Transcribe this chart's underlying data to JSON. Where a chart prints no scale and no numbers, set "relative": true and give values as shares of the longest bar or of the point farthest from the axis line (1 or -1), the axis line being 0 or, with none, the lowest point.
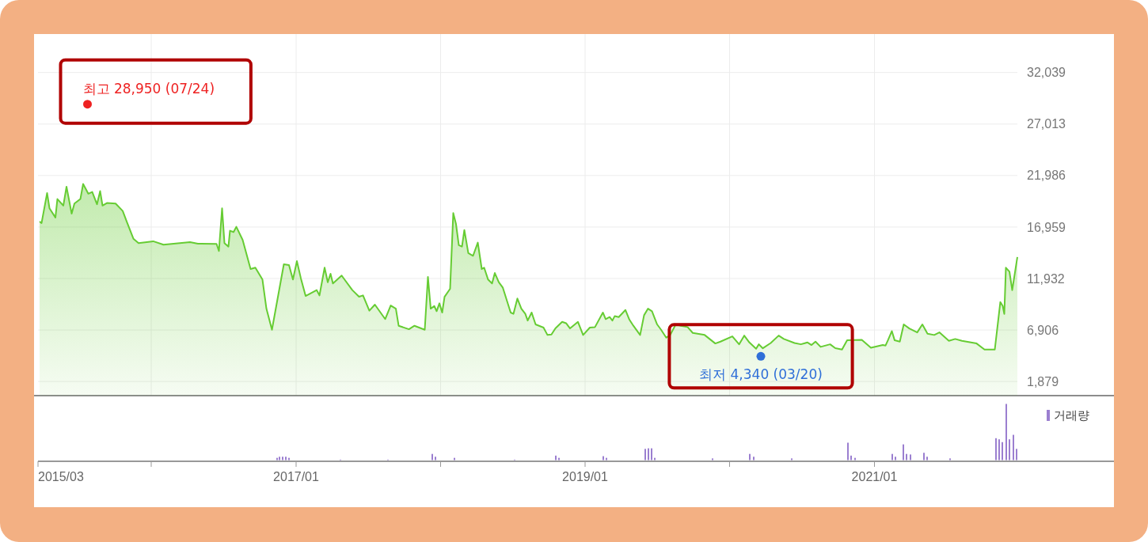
{
  "chart_data": [
    {
      "type": "area",
      "xlim": [
        "2015-03-21",
        "2022-08-29"
      ],
      "ylim": [
        500,
        35800
      ],
      "yticks": [
        {
          "value": 1879,
          "label": "1,879"
        },
        {
          "value": 6906,
          "label": "6,906"
        },
        {
          "value": 11932,
          "label": "11,932"
        },
        {
          "value": 16959,
          "label": "16,959"
        },
        {
          "value": 21986,
          "label": "21,986"
        },
        {
          "value": 27013,
          "label": "27,013"
        },
        {
          "value": 32039,
          "label": "32,039"
        }
      ],
      "xticks": [
        {
          "value": "2016-01-01",
          "label": null
        },
        {
          "value": "2017-01-01",
          "label": null
        },
        {
          "value": "2018-01-01",
          "label": null
        },
        {
          "value": "2019-01-01",
          "label": null
        },
        {
          "value": "2020-01-01",
          "label": null
        },
        {
          "value": "2021-01-01",
          "label": null
        }
      ],
      "grid": true,
      "tick_labels": "y",
      "series": [
        {
          "color": "#66cc33",
          "x": [
            "2015-03-25",
            "2015-03-30",
            "2015-04-13",
            "2015-04-19",
            "2015-05-04",
            "2015-05-09",
            "2015-05-24",
            "2015-06-01",
            "2015-06-14",
            "2015-06-21",
            "2015-07-06",
            "2015-07-13",
            "2015-07-26",
            "2015-08-05",
            "2015-08-17",
            "2015-08-25",
            "2015-08-31",
            "2015-09-11",
            "2015-10-03",
            "2015-10-21",
            "2015-10-31",
            "2015-11-17",
            "2015-11-30",
            "2016-01-06",
            "2016-02-01",
            "2016-04-08",
            "2016-04-28",
            "2016-06-14",
            "2016-06-20",
            "2016-06-28",
            "2016-07-04",
            "2016-07-14",
            "2016-07-18",
            "2016-07-27",
            "2016-08-03",
            "2016-08-19",
            "2016-09-08",
            "2016-09-20",
            "2016-10-08",
            "2016-10-18",
            "2016-11-01",
            "2016-12-01",
            "2016-12-14",
            "2016-12-24",
            "2017-01-03",
            "2017-01-13",
            "2017-01-25",
            "2017-02-22",
            "2017-03-01",
            "2017-03-14",
            "2017-03-22",
            "2017-03-29",
            "2017-04-04",
            "2017-04-26",
            "2017-05-23",
            "2017-06-09",
            "2017-06-19",
            "2017-07-05",
            "2017-07-19",
            "2017-08-14",
            "2017-08-28",
            "2017-09-10",
            "2017-09-17",
            "2017-10-13",
            "2017-10-27",
            "2017-11-22",
            "2017-11-30",
            "2017-12-07",
            "2017-12-16",
            "2017-12-22",
            "2017-12-29",
            "2018-01-05",
            "2018-01-11",
            "2018-01-25",
            "2018-02-02",
            "2018-02-09",
            "2018-02-16",
            "2018-02-24",
            "2018-03-02",
            "2018-03-12",
            "2018-03-24",
            "2018-04-05",
            "2018-04-15",
            "2018-04-21",
            "2018-05-01",
            "2018-05-11",
            "2018-05-18",
            "2018-05-28",
            "2018-06-07",
            "2018-06-27",
            "2018-07-04",
            "2018-07-14",
            "2018-07-24",
            "2018-08-03",
            "2018-08-09",
            "2018-08-19",
            "2018-08-29",
            "2018-09-18",
            "2018-09-28",
            "2018-10-08",
            "2018-10-18",
            "2018-11-04",
            "2018-11-14",
            "2018-11-24",
            "2018-12-14",
            "2018-12-27",
            "2019-01-13",
            "2019-01-26",
            "2019-02-15",
            "2019-02-22",
            "2019-03-04",
            "2019-03-11",
            "2019-03-17",
            "2019-03-27",
            "2019-04-13",
            "2019-04-23",
            "2019-05-03",
            "2019-05-20",
            "2019-05-30",
            "2019-06-09",
            "2019-06-19",
            "2019-07-02",
            "2019-07-12",
            "2019-07-25",
            "2019-08-04",
            "2019-08-18",
            "2019-08-31",
            "2019-09-17",
            "2019-09-30",
            "2019-10-30",
            "2019-11-26",
            "2019-12-09",
            "2020-01-08",
            "2020-01-25",
            "2020-02-07",
            "2020-02-20",
            "2020-03-08",
            "2020-03-15",
            "2020-03-25",
            "2020-04-14",
            "2020-05-04",
            "2020-05-17",
            "2020-06-13",
            "2020-06-29",
            "2020-07-16",
            "2020-07-26",
            "2020-08-05",
            "2020-08-18",
            "2020-09-11",
            "2020-09-24",
            "2020-10-11",
            "2020-10-24",
            "2020-11-30",
            "2020-12-23",
            "2021-01-22",
            "2021-01-29",
            "2021-02-04",
            "2021-02-14",
            "2021-02-21",
            "2021-03-06",
            "2021-03-16",
            "2021-03-30",
            "2021-04-19",
            "2021-05-02",
            "2021-05-15",
            "2021-06-01",
            "2021-06-14",
            "2021-07-08",
            "2021-07-24",
            "2021-08-10",
            "2021-09-16",
            "2021-10-06",
            "2021-11-01",
            "2021-11-15",
            "2021-11-21",
            "2021-11-25",
            "2021-11-29",
            "2021-12-08",
            "2021-12-15",
            "2021-12-28"
          ],
          "values": [
            17500,
            17350,
            20280,
            18790,
            17890,
            19690,
            19050,
            20900,
            18270,
            19250,
            19690,
            21160,
            20210,
            20380,
            19180,
            20460,
            19050,
            19300,
            19250,
            18530,
            17500,
            15820,
            15390,
            15570,
            15230,
            15490,
            15330,
            15310,
            14620,
            18790,
            15390,
            15050,
            16600,
            16470,
            16980,
            15700,
            12860,
            12990,
            11830,
            8990,
            6930,
            13320,
            13250,
            11830,
            13630,
            11960,
            10230,
            10800,
            10280,
            12990,
            11570,
            12400,
            11450,
            12220,
            10800,
            10150,
            10280,
            8790,
            9380,
            7970,
            9300,
            8990,
            7320,
            6980,
            7320,
            6930,
            12090,
            8990,
            9250,
            8740,
            9510,
            8610,
            10150,
            10930,
            18330,
            17240,
            15180,
            15050,
            16670,
            14410,
            14150,
            15440,
            12860,
            12990,
            11830,
            11450,
            12470,
            11570,
            11060,
            8610,
            8480,
            9980,
            8990,
            8480,
            7830,
            8610,
            7450,
            7140,
            6420,
            6470,
            7060,
            7700,
            7570,
            7060,
            7700,
            6420,
            7140,
            7190,
            8610,
            7970,
            8170,
            7830,
            8270,
            8170,
            8860,
            7910,
            7320,
            6420,
            8350,
            8990,
            8740,
            7450,
            6930,
            6160,
            6420,
            7450,
            7320,
            7190,
            6620,
            6420,
            5590,
            5770,
            6290,
            5510,
            6360,
            5690,
            5070,
            5510,
            5120,
            5640,
            6360,
            6030,
            5640,
            5510,
            5690,
            5440,
            5770,
            5260,
            5510,
            5130,
            5000,
            5900,
            5950,
            5180,
            5440,
            5390,
            5900,
            6800,
            5900,
            5770,
            7450,
            7060,
            6670,
            7450,
            6540,
            6420,
            6670,
            5850,
            6030,
            5850,
            5590,
            5000,
            5000,
            9640,
            9250,
            8480,
            12990,
            12600,
            10800,
            14020
          ]
        }
      ],
      "annotations": [
        {
          "text": "최고 28,950 (07/24)",
          "x": "2015-07-24",
          "y": 28950
        },
        {
          "text": "최저 4,340 (03/20)",
          "x": "2020-03-20",
          "y": 4340
        }
      ]
    },
    {
      "type": "bar",
      "relative": true,
      "legend": "top right",
      "tick_labels": "x",
      "xlim": [
        "2015-03-21",
        "2022-08-29"
      ],
      "xticks": [
        {
          "value": "2015-03-21",
          "label": "2015/03"
        },
        {
          "value": "2016-01-01",
          "label": null
        },
        {
          "value": "2017-01-01",
          "label": "2017/01"
        },
        {
          "value": "2018-01-01",
          "label": null
        },
        {
          "value": "2019-01-01",
          "label": "2019/01"
        },
        {
          "value": "2020-01-01",
          "label": null
        },
        {
          "value": "2021-01-01",
          "label": "2021/01"
        }
      ],
      "series": [
        {
          "name": "거래량",
          "color": "#9b7fd0",
          "x": [
            "2016-11-14",
            "2016-11-20",
            "2016-11-28",
            "2016-12-06",
            "2016-12-14",
            "2017-04-23",
            "2017-08-21",
            "2017-12-11",
            "2017-12-19",
            "2018-02-05",
            "2018-07-07",
            "2018-10-19",
            "2018-10-27",
            "2019-02-16",
            "2019-02-24",
            "2019-06-02",
            "2019-06-10",
            "2019-06-18",
            "2019-06-26",
            "2019-11-19",
            "2020-02-21",
            "2020-03-02",
            "2020-06-06",
            "2020-10-26",
            "2020-11-03",
            "2020-11-13",
            "2021-02-15",
            "2021-02-23",
            "2021-03-15",
            "2021-03-23",
            "2021-04-02",
            "2021-05-06",
            "2021-05-14",
            "2021-07-11",
            "2021-11-04",
            "2021-11-12",
            "2021-11-20",
            "2021-11-30",
            "2021-12-08",
            "2021-12-18",
            "2021-12-26"
          ],
          "values": [
            0.04,
            0.06,
            0.06,
            0.06,
            0.04,
            0.01,
            0.01,
            0.11,
            0.06,
            0.04,
            0.01,
            0.08,
            0.04,
            0.07,
            0.04,
            0.2,
            0.21,
            0.21,
            0.04,
            0.03,
            0.11,
            0.06,
            0.03,
            0.31,
            0.08,
            0.04,
            0.11,
            0.06,
            0.28,
            0.11,
            0.1,
            0.13,
            0.06,
            0.03,
            0.39,
            0.37,
            0.32,
            1,
            0.37,
            0.45,
            0.2
          ]
        }
      ]
    }
  ]
}
